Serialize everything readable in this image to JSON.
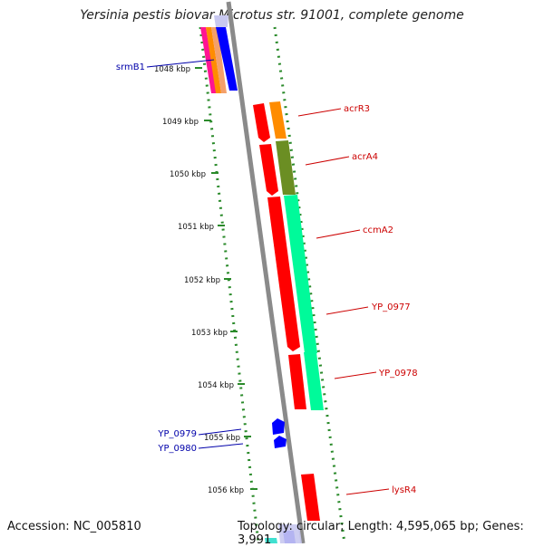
{
  "title": "Yersinia pestis biovar Microtus str. 91001, complete genome",
  "footer": {
    "accession": "Accession: NC_005810",
    "topology": "Topology: circular; Length: 4,595,065 bp; Genes: 3,991"
  },
  "scale_labels": [
    "1048 kbp",
    "1049 kbp",
    "1050 kbp",
    "1051 kbp",
    "1052 kbp",
    "1053 kbp",
    "1054 kbp",
    "1055 kbp",
    "1056 kbp"
  ],
  "colors": {
    "label_forward": "#0000aa",
    "label_reverse": "#cc0000",
    "tick": "#2a8a2a",
    "backbone": "#888888"
  },
  "gene_labels": [
    {
      "name": "srmB1",
      "strand": "forward"
    },
    {
      "name": "acrR3",
      "strand": "reverse"
    },
    {
      "name": "acrA4",
      "strand": "reverse"
    },
    {
      "name": "ccmA2",
      "strand": "reverse"
    },
    {
      "name": "YP_0977",
      "strand": "reverse"
    },
    {
      "name": "YP_0978",
      "strand": "reverse"
    },
    {
      "name": "YP_0979",
      "strand": "forward"
    },
    {
      "name": "YP_0980",
      "strand": "forward"
    },
    {
      "name": "lysR4",
      "strand": "reverse"
    }
  ]
}
